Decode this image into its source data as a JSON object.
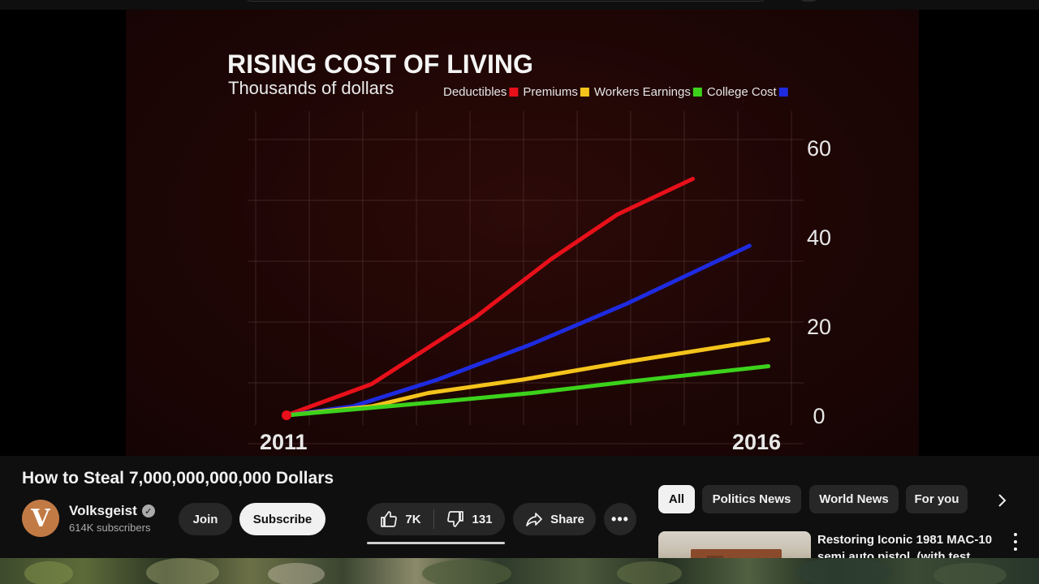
{
  "video": {
    "title": "How to Steal 7,000,000,000,000 Dollars"
  },
  "channel": {
    "avatar_letter": "V",
    "avatar_color": "#c27a45",
    "name": "Volksgeist",
    "verified_icon": "check-circle-icon",
    "subscribers": "614K subscribers"
  },
  "actions": {
    "join_label": "Join",
    "subscribe_label": "Subscribe",
    "like_count": "7K",
    "dislike_count": "131",
    "share_label": "Share",
    "more_icon": "more-horizontal-icon"
  },
  "chips": {
    "items": [
      "All",
      "Politics News",
      "World News",
      "For you"
    ],
    "selected": "All"
  },
  "recommendation": {
    "title": "Restoring Iconic 1981 MAC-10 semi auto pistol. (with test"
  },
  "chart_data": {
    "type": "line",
    "title": "RISING COST OF LIVING",
    "subtitle": "Thousands of dollars",
    "legend_order": [
      "Deductibles",
      "Premiums",
      "Workers Earnings",
      "College Cost"
    ],
    "legend_placement": "top",
    "series": [
      {
        "name": "Deductibles",
        "color": "#e8101a",
        "x": [
          2011,
          2011.9,
          2013,
          2013.8,
          2014.5,
          2015.3
        ],
        "y": [
          0,
          7,
          22,
          35,
          45,
          53
        ]
      },
      {
        "name": "Premiums",
        "color": "#1e2be0",
        "x": [
          2011,
          2011.7,
          2012.6,
          2013.6,
          2014.6,
          2015.9
        ],
        "y": [
          0,
          2,
          8,
          16,
          25,
          38
        ]
      },
      {
        "name": "Workers Earnings",
        "color": "#f5c41c",
        "x": [
          2011,
          2011.9,
          2012.5,
          2013.5,
          2014.6,
          2016.1
        ],
        "y": [
          0,
          2,
          5,
          8,
          12,
          17
        ]
      },
      {
        "name": "College Cost",
        "color": "#3cd21c",
        "x": [
          2011,
          2011.8,
          2012.6,
          2013.6,
          2014.6,
          2016.1
        ],
        "y": [
          0,
          1.5,
          3,
          5,
          7.5,
          11
        ]
      }
    ],
    "series_color_labels": [
      "#e8101a",
      "#f5c41c",
      "#3cd21c",
      "#1e2be0"
    ],
    "yticks": [
      0,
      20,
      40,
      60
    ],
    "xticks": [
      2011,
      2016
    ],
    "xlim": [
      2011,
      2016.5
    ],
    "ylim": [
      0,
      60
    ],
    "grid": true
  }
}
